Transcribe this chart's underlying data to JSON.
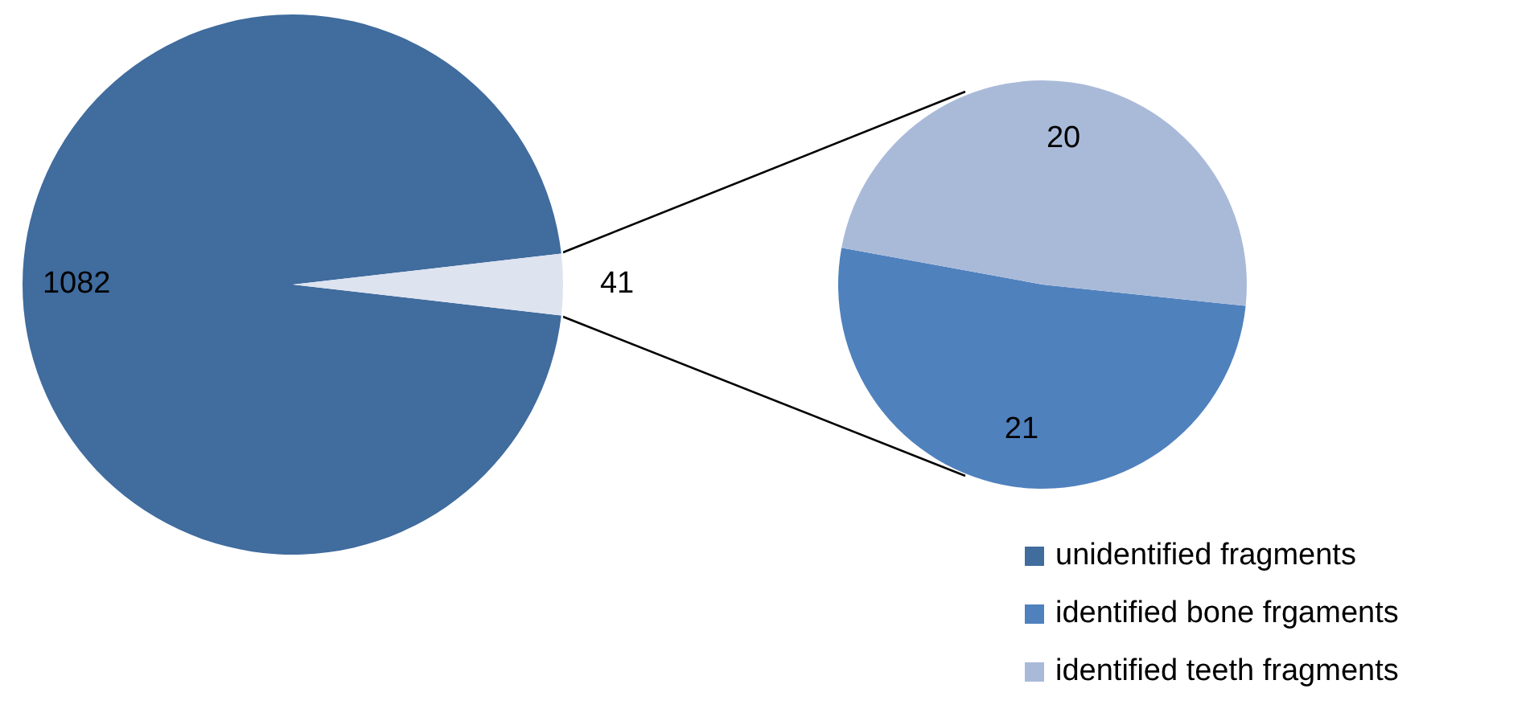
{
  "chart_data": [
    {
      "type": "pie",
      "categories": [
        "unidentified fragments",
        null
      ],
      "values": [
        1082,
        41
      ],
      "colors": [
        "#406c9e",
        "#dde3ef"
      ],
      "data_labels": true,
      "legend": "bottom right"
    },
    {
      "type": "pie",
      "categories": [
        "identified bone frgaments",
        "identified teeth fragments"
      ],
      "values": [
        21,
        20
      ],
      "colors": [
        "#4f81bd",
        "#a9bad9"
      ],
      "data_labels": true,
      "legend": "bottom right"
    }
  ]
}
